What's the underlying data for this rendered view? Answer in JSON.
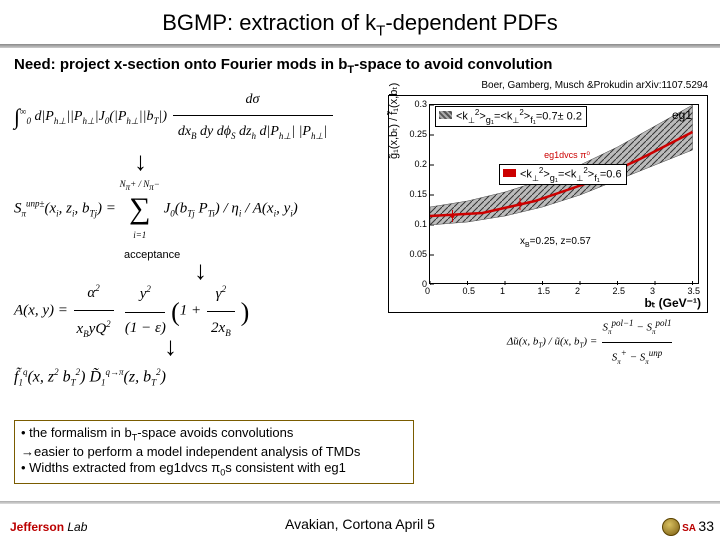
{
  "title": {
    "pre": "BGMP: extraction of k",
    "sub": "T",
    "post": "-dependent PDFs"
  },
  "need": {
    "pre": "Need: project x-section onto Fourier mods in b",
    "sub": "T",
    "post": "-space to avoid convolution"
  },
  "citation": "Boer, Gamberg, Musch &Prokudin arXiv:1107.5294",
  "eq1": {
    "int_sup": "∞",
    "int_sub": "0",
    "body1": "d|P",
    "body1s": "h⊥",
    "body2": "||P",
    "body2s": "h⊥",
    "body3": "|J",
    "j0s": "0",
    "body4": "(|P",
    "body4s": "h⊥",
    "body5": "||b",
    "body5s": "T",
    "body6": "|) ",
    "num": "dσ",
    "den": "dx",
    "den2": "B",
    "den3": " dy dϕ",
    "den3s": "S",
    "den4": " dz",
    "den4s": "h",
    "den5": " d|P",
    "den5s": "h⊥",
    "tail": "| |P",
    "tails": "h⊥",
    "tail2": "|"
  },
  "eq2": {
    "lhs": "S",
    "lhs_sub": "π",
    "lhs_sup": "unp±",
    "args": "(x",
    "args_i": "i",
    "args2": ", z",
    "args_j": "i",
    "args3": ", b",
    "args_tj": "Tj",
    "args4": ") = ",
    "sum_top": "N",
    "sum_top1": "π",
    "sum_top2": "+ / N",
    "sum_top3": "π",
    "sum_top4": "−",
    "sum_bot": "i=1",
    "body": "J",
    "b0": "0",
    "body2": "(b",
    "bTj": "Tj",
    "body3": " P",
    "Ti": "Ti",
    "body4": ") / η",
    "eta": "i",
    "body5": " / A(x",
    "xi": "i",
    "body6": ", y",
    "yi": "i",
    "body7": ")"
  },
  "acceptance": "acceptance",
  "eq3": {
    "lhs": "A(x, y) = ",
    "num1": "α",
    "num1s": "2",
    "num2": "y",
    "num2s": "2",
    "den1": "x",
    "den1s": "B",
    "den2": "yQ",
    "den2s": "2",
    "den3": "(1 − ε)",
    "par1": "1 + ",
    "par2": "γ",
    "par2s": "2",
    "par3": "2x",
    "par3s": "B"
  },
  "eq4": {
    "f": "f̃",
    "fs": "1",
    "fsup": "q",
    "a1": "(x, z",
    "a1s": "2",
    "b1": " b",
    "b1s": "T",
    "b2": "2",
    "mid": ") D̃",
    "ds": "1",
    "dsup": "q→π",
    "c1": "(z, b",
    "c1s": "T",
    "c2": "2",
    "end": ")"
  },
  "chart": {
    "ylabel": "g̃₁(x,bₜ) / f̃₁(x,bₜ)",
    "xlabel": "bₜ (GeV⁻¹)",
    "inset_xb": "xB=0.25, z=0.57",
    "leg1": {
      "pre": "<k",
      "s1": "⊥",
      "sup": "2",
      "mid": ">",
      "g": "g₁",
      "eq": "=<k",
      "s2": "⊥",
      "sup2": "2",
      "mid2": ">",
      "f": "f₁",
      "val": "=0.7± 0.2"
    },
    "eg1dvcs": "eg1dvcs π⁰",
    "leg2": {
      "pre": "<k",
      "s1": "⊥",
      "sup": "2",
      "mid": ">",
      "g": "g₁",
      "eq": "=<k",
      "s2": "⊥",
      "sup2": "2",
      "mid2": ">",
      "f": "f₁",
      "val": "=0.6"
    },
    "eg1r": "eg1",
    "yticks": [
      "0.3",
      "0.25",
      "0.2",
      "0.15",
      "0.1",
      "0.05",
      "0"
    ],
    "xticks": [
      "0",
      "0.5",
      "1",
      "1.5",
      "2",
      "2.5",
      "3",
      "3.5"
    ],
    "colors": {
      "band": "#777",
      "line": "#c00",
      "grid": "#000",
      "bg": "#fff"
    },
    "curve_band": [
      {
        "x": 0,
        "lo": 0.1,
        "hi": 0.13
      },
      {
        "x": 0.5,
        "lo": 0.105,
        "hi": 0.14
      },
      {
        "x": 1.0,
        "lo": 0.115,
        "hi": 0.155
      },
      {
        "x": 1.5,
        "lo": 0.13,
        "hi": 0.175
      },
      {
        "x": 2.0,
        "lo": 0.15,
        "hi": 0.2
      },
      {
        "x": 2.5,
        "lo": 0.175,
        "hi": 0.23
      },
      {
        "x": 3.0,
        "lo": 0.2,
        "hi": 0.265
      },
      {
        "x": 3.5,
        "lo": 0.225,
        "hi": 0.3
      }
    ],
    "curve_line": [
      {
        "x": 0,
        "y": 0.115
      },
      {
        "x": 0.7,
        "y": 0.12
      },
      {
        "x": 1.4,
        "y": 0.14
      },
      {
        "x": 2.1,
        "y": 0.17
      },
      {
        "x": 2.8,
        "y": 0.21
      },
      {
        "x": 3.5,
        "y": 0.255
      }
    ],
    "xlim": [
      0,
      3.6
    ],
    "ylim": [
      0,
      0.3
    ]
  },
  "eq_delta": {
    "l1": "Δ̃u(x, b",
    "l1s": "T",
    "l2": ") / ũ(x, b",
    "l2s": "T",
    "l3": ") = ",
    "num": "S",
    "num_s": "π",
    "num_sp": "pol−1",
    "minus": " − S",
    "m_s": "π",
    "m_sp": "pol1",
    "den": "S",
    "den_s": "π",
    "den_sp": "+",
    "d2": " − S",
    "d2s": "π",
    "d2sp": "unp"
  },
  "bullets": {
    "b1a": "• the formalism in b",
    "b1s": "T",
    "b1b": "-space avoids convolutions",
    "b2": "→easier to perform a model independent analysis of TMDs",
    "b3a": "• Widths extracted from eg1dvcs π",
    "b3s": "0",
    "b3b": "s consistent with eg1"
  },
  "footer": {
    "left_pre": "Jefferson",
    "left_post": " Lab",
    "center": "Avakian, Cortona  April 5",
    "right_text": "SA",
    "page": "33"
  }
}
